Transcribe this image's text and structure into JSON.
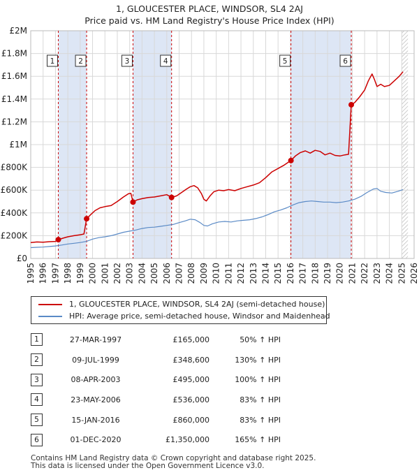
{
  "title_line1": "1, GLOUCESTER PLACE, WINDSOR, SL4 2AJ",
  "title_line2": "Price paid vs. HM Land Registry's House Price Index (HPI)",
  "legend": {
    "property": "1, GLOUCESTER PLACE, WINDSOR, SL4 2AJ (semi-detached house)",
    "hpi": "HPI: Average price, semi-detached house, Windsor and Maidenhead"
  },
  "transactions": [
    {
      "num": "1",
      "date": "27-MAR-1997",
      "price": "£165,000",
      "hpi": "50% ↑ HPI"
    },
    {
      "num": "2",
      "date": "09-JUL-1999",
      "price": "£348,600",
      "hpi": "130% ↑ HPI"
    },
    {
      "num": "3",
      "date": "08-APR-2003",
      "price": "£495,000",
      "hpi": "100% ↑ HPI"
    },
    {
      "num": "4",
      "date": "23-MAY-2006",
      "price": "£536,000",
      "hpi": "83% ↑ HPI"
    },
    {
      "num": "5",
      "date": "15-JAN-2016",
      "price": "£860,000",
      "hpi": "83% ↑ HPI"
    },
    {
      "num": "6",
      "date": "01-DEC-2020",
      "price": "£1,350,000",
      "hpi": "165% ↑ HPI"
    }
  ],
  "footer_line1": "Contains HM Land Registry data © Crown copyright and database right 2025.",
  "footer_line2": "This data is licensed under the Open Government Licence v3.0.",
  "chart_data": {
    "type": "line",
    "x_range": [
      1995,
      2026
    ],
    "y_range": [
      0,
      2000000
    ],
    "y_ticks": [
      {
        "v": 0,
        "label": "£0"
      },
      {
        "v": 200000,
        "label": "£200K"
      },
      {
        "v": 400000,
        "label": "£400K"
      },
      {
        "v": 600000,
        "label": "£600K"
      },
      {
        "v": 800000,
        "label": "£800K"
      },
      {
        "v": 1000000,
        "label": "£1M"
      },
      {
        "v": 1200000,
        "label": "£1.2M"
      },
      {
        "v": 1400000,
        "label": "£1.4M"
      },
      {
        "v": 1600000,
        "label": "£1.6M"
      },
      {
        "v": 1800000,
        "label": "£1.8M"
      },
      {
        "v": 2000000,
        "label": "£2M"
      }
    ],
    "x_ticks": [
      1995,
      1996,
      1997,
      1998,
      1999,
      2000,
      2001,
      2002,
      2003,
      2004,
      2005,
      2006,
      2007,
      2008,
      2009,
      2010,
      2011,
      2012,
      2013,
      2014,
      2015,
      2016,
      2017,
      2018,
      2019,
      2020,
      2021,
      2022,
      2023,
      2024,
      2025,
      2026
    ],
    "grid": true,
    "shaded_ranges": [
      [
        1997.23,
        1999.52
      ],
      [
        2003.27,
        2006.39
      ],
      [
        2016.04,
        2020.92
      ]
    ],
    "forecast_hatch_start": 2025.0,
    "colors": {
      "property": "#cc0000",
      "hpi": "#5a8ac6",
      "shade": "#dde6f5",
      "grid": "#d8d8d8",
      "vline": "#cc0000"
    },
    "sales": [
      {
        "label": "1",
        "x": 1997.23,
        "y": 165000
      },
      {
        "label": "2",
        "x": 1999.52,
        "y": 348600
      },
      {
        "label": "3",
        "x": 2003.27,
        "y": 495000
      },
      {
        "label": "4",
        "x": 2006.39,
        "y": 536000
      },
      {
        "label": "5",
        "x": 2016.04,
        "y": 860000
      },
      {
        "label": "6",
        "x": 2020.92,
        "y": 1350000
      }
    ],
    "series": [
      {
        "name": "1, GLOUCESTER PLACE, WINDSOR, SL4 2AJ (semi-detached house)",
        "points": [
          [
            1995.0,
            140000
          ],
          [
            1995.5,
            145000
          ],
          [
            1996.0,
            143000
          ],
          [
            1996.5,
            147000
          ],
          [
            1997.0,
            150000
          ],
          [
            1997.23,
            165000
          ],
          [
            1997.6,
            178000
          ],
          [
            1998.0,
            190000
          ],
          [
            1998.5,
            200000
          ],
          [
            1999.0,
            208000
          ],
          [
            1999.3,
            215000
          ],
          [
            1999.52,
            348600
          ],
          [
            1999.8,
            380000
          ],
          [
            2000.2,
            420000
          ],
          [
            2000.6,
            445000
          ],
          [
            2001.0,
            455000
          ],
          [
            2001.5,
            465000
          ],
          [
            2002.0,
            500000
          ],
          [
            2002.5,
            540000
          ],
          [
            2002.9,
            568000
          ],
          [
            2003.1,
            572000
          ],
          [
            2003.27,
            495000
          ],
          [
            2003.6,
            515000
          ],
          [
            2004.0,
            525000
          ],
          [
            2004.5,
            535000
          ],
          [
            2005.0,
            540000
          ],
          [
            2005.5,
            550000
          ],
          [
            2006.0,
            560000
          ],
          [
            2006.39,
            536000
          ],
          [
            2006.8,
            550000
          ],
          [
            2007.2,
            580000
          ],
          [
            2007.6,
            610000
          ],
          [
            2007.9,
            630000
          ],
          [
            2008.2,
            640000
          ],
          [
            2008.5,
            620000
          ],
          [
            2008.8,
            570000
          ],
          [
            2009.0,
            520000
          ],
          [
            2009.2,
            505000
          ],
          [
            2009.5,
            550000
          ],
          [
            2009.8,
            585000
          ],
          [
            2010.2,
            600000
          ],
          [
            2010.6,
            595000
          ],
          [
            2011.0,
            605000
          ],
          [
            2011.5,
            595000
          ],
          [
            2012.0,
            615000
          ],
          [
            2012.5,
            630000
          ],
          [
            2013.0,
            645000
          ],
          [
            2013.5,
            665000
          ],
          [
            2014.0,
            710000
          ],
          [
            2014.5,
            760000
          ],
          [
            2015.0,
            790000
          ],
          [
            2015.5,
            820000
          ],
          [
            2016.04,
            860000
          ],
          [
            2016.4,
            900000
          ],
          [
            2016.8,
            930000
          ],
          [
            2017.2,
            945000
          ],
          [
            2017.6,
            925000
          ],
          [
            2018.0,
            950000
          ],
          [
            2018.4,
            940000
          ],
          [
            2018.8,
            910000
          ],
          [
            2019.2,
            925000
          ],
          [
            2019.6,
            905000
          ],
          [
            2020.0,
            900000
          ],
          [
            2020.4,
            910000
          ],
          [
            2020.7,
            915000
          ],
          [
            2020.92,
            1350000
          ],
          [
            2021.2,
            1370000
          ],
          [
            2021.6,
            1420000
          ],
          [
            2022.0,
            1480000
          ],
          [
            2022.3,
            1560000
          ],
          [
            2022.6,
            1620000
          ],
          [
            2022.8,
            1570000
          ],
          [
            2023.0,
            1510000
          ],
          [
            2023.3,
            1530000
          ],
          [
            2023.6,
            1510000
          ],
          [
            2024.0,
            1520000
          ],
          [
            2024.4,
            1560000
          ],
          [
            2024.8,
            1600000
          ],
          [
            2025.1,
            1640000
          ]
        ]
      },
      {
        "name": "HPI: Average price, semi-detached house, Windsor and Maidenhead",
        "points": [
          [
            1995.0,
            95000
          ],
          [
            1995.5,
            98000
          ],
          [
            1996.0,
            100000
          ],
          [
            1996.5,
            105000
          ],
          [
            1997.0,
            110000
          ],
          [
            1997.5,
            118000
          ],
          [
            1998.0,
            127000
          ],
          [
            1998.5,
            133000
          ],
          [
            1999.0,
            140000
          ],
          [
            1999.5,
            150000
          ],
          [
            2000.0,
            170000
          ],
          [
            2000.5,
            183000
          ],
          [
            2001.0,
            190000
          ],
          [
            2001.5,
            200000
          ],
          [
            2002.0,
            215000
          ],
          [
            2002.5,
            230000
          ],
          [
            2003.0,
            240000
          ],
          [
            2003.5,
            250000
          ],
          [
            2004.0,
            263000
          ],
          [
            2004.5,
            272000
          ],
          [
            2005.0,
            275000
          ],
          [
            2005.5,
            282000
          ],
          [
            2006.0,
            290000
          ],
          [
            2006.5,
            298000
          ],
          [
            2007.0,
            315000
          ],
          [
            2007.5,
            330000
          ],
          [
            2007.9,
            345000
          ],
          [
            2008.3,
            340000
          ],
          [
            2008.7,
            315000
          ],
          [
            2009.0,
            290000
          ],
          [
            2009.3,
            285000
          ],
          [
            2009.7,
            305000
          ],
          [
            2010.2,
            320000
          ],
          [
            2010.7,
            325000
          ],
          [
            2011.2,
            320000
          ],
          [
            2011.7,
            330000
          ],
          [
            2012.2,
            335000
          ],
          [
            2012.7,
            340000
          ],
          [
            2013.2,
            350000
          ],
          [
            2013.7,
            365000
          ],
          [
            2014.2,
            385000
          ],
          [
            2014.7,
            410000
          ],
          [
            2015.2,
            425000
          ],
          [
            2015.7,
            445000
          ],
          [
            2016.2,
            470000
          ],
          [
            2016.7,
            490000
          ],
          [
            2017.2,
            500000
          ],
          [
            2017.7,
            505000
          ],
          [
            2018.2,
            500000
          ],
          [
            2018.7,
            495000
          ],
          [
            2019.2,
            495000
          ],
          [
            2019.7,
            490000
          ],
          [
            2020.2,
            495000
          ],
          [
            2020.7,
            505000
          ],
          [
            2021.2,
            520000
          ],
          [
            2021.7,
            545000
          ],
          [
            2022.2,
            580000
          ],
          [
            2022.7,
            610000
          ],
          [
            2023.0,
            615000
          ],
          [
            2023.3,
            590000
          ],
          [
            2023.7,
            580000
          ],
          [
            2024.2,
            575000
          ],
          [
            2024.7,
            590000
          ],
          [
            2025.1,
            605000
          ]
        ]
      }
    ]
  }
}
